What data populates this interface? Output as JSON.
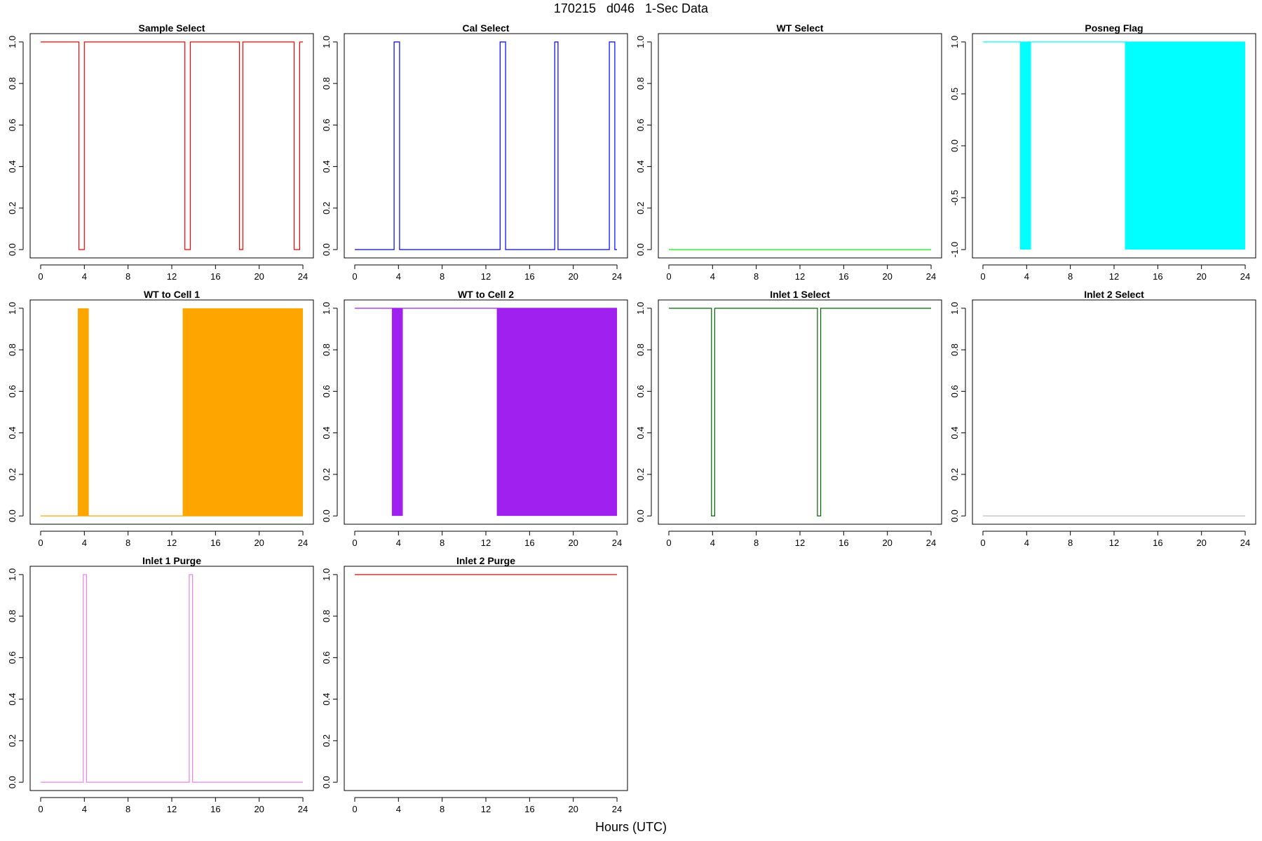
{
  "figure": {
    "title": "170215   d046   1-Sec Data",
    "xlabel": "Hours (UTC)"
  },
  "chart_data": [
    {
      "type": "line",
      "title": "Sample Select",
      "color": "#FF0000",
      "xlim": [
        0,
        24
      ],
      "ylim": [
        0,
        1
      ],
      "xticks": [
        "0",
        "4",
        "8",
        "12",
        "16",
        "20",
        "24"
      ],
      "yticks": [
        "0.0",
        "0.2",
        "0.4",
        "0.6",
        "0.8",
        "1.0"
      ],
      "x": [
        0,
        3.5,
        3.5,
        4.0,
        4.0,
        13.2,
        13.2,
        13.7,
        13.7,
        18.2,
        18.2,
        18.5,
        18.5,
        23.2,
        23.2,
        23.7,
        23.7,
        24
      ],
      "y": [
        1,
        1,
        0,
        0,
        1,
        1,
        0,
        0,
        1,
        1,
        0,
        0,
        1,
        1,
        0,
        0,
        1,
        1
      ]
    },
    {
      "type": "line",
      "title": "Cal Select",
      "color": "#0000FF",
      "xlim": [
        0,
        24
      ],
      "ylim": [
        0,
        1
      ],
      "xticks": [
        "0",
        "4",
        "8",
        "12",
        "16",
        "20",
        "24"
      ],
      "yticks": [
        "0.0",
        "0.2",
        "0.4",
        "0.6",
        "0.8",
        "1.0"
      ],
      "x": [
        0,
        3.6,
        3.6,
        4.1,
        4.1,
        13.3,
        13.3,
        13.8,
        13.8,
        18.3,
        18.3,
        18.6,
        18.6,
        23.3,
        23.3,
        23.8,
        23.8,
        24
      ],
      "y": [
        0,
        0,
        1,
        1,
        0,
        0,
        1,
        1,
        0,
        0,
        1,
        1,
        0,
        0,
        1,
        1,
        0,
        0
      ]
    },
    {
      "type": "line",
      "title": "WT Select",
      "color": "#00FF00",
      "xlim": [
        0,
        24
      ],
      "ylim": [
        0,
        1
      ],
      "xticks": [
        "0",
        "4",
        "8",
        "12",
        "16",
        "20",
        "24"
      ],
      "yticks": [
        "0.0",
        "0.2",
        "0.4",
        "0.6",
        "0.8",
        "1.0"
      ],
      "x": [
        0,
        24
      ],
      "y": [
        0,
        0
      ]
    },
    {
      "type": "area",
      "title": "Posneg Flag",
      "color": "#00FFFF",
      "xlim": [
        0,
        24
      ],
      "ylim": [
        -1,
        1
      ],
      "xticks": [
        "0",
        "4",
        "8",
        "12",
        "16",
        "20",
        "24"
      ],
      "yticks": [
        "-1.0",
        "-0.5",
        "0.0",
        "0.5",
        "1.0"
      ],
      "baseline": 1,
      "filled_intervals": [
        [
          3.4,
          4.4,
          -1
        ],
        [
          13.0,
          24.0,
          -1
        ]
      ]
    },
    {
      "type": "area",
      "title": "WT to Cell 1",
      "color": "#FFA500",
      "xlim": [
        0,
        24
      ],
      "ylim": [
        0,
        1
      ],
      "xticks": [
        "0",
        "4",
        "8",
        "12",
        "16",
        "20",
        "24"
      ],
      "yticks": [
        "0.0",
        "0.2",
        "0.4",
        "0.6",
        "0.8",
        "1.0"
      ],
      "baseline": 0,
      "filled_intervals": [
        [
          3.4,
          4.4,
          1
        ],
        [
          13.0,
          24.0,
          1
        ]
      ]
    },
    {
      "type": "area",
      "title": "WT to Cell 2",
      "color": "#A020F0",
      "xlim": [
        0,
        24
      ],
      "ylim": [
        0,
        1
      ],
      "xticks": [
        "0",
        "4",
        "8",
        "12",
        "16",
        "20",
        "24"
      ],
      "yticks": [
        "0.0",
        "0.2",
        "0.4",
        "0.6",
        "0.8",
        "1.0"
      ],
      "baseline": 1,
      "filled_intervals": [
        [
          3.4,
          4.4,
          0
        ],
        [
          13.0,
          24.0,
          0
        ]
      ]
    },
    {
      "type": "line",
      "title": "Inlet 1 Select",
      "color": "#006400",
      "xlim": [
        0,
        24
      ],
      "ylim": [
        0,
        1
      ],
      "xticks": [
        "0",
        "4",
        "8",
        "12",
        "16",
        "20",
        "24"
      ],
      "yticks": [
        "0.0",
        "0.2",
        "0.4",
        "0.6",
        "0.8",
        "1.0"
      ],
      "x": [
        0,
        3.9,
        3.9,
        4.2,
        4.2,
        13.6,
        13.6,
        13.9,
        13.9,
        24
      ],
      "y": [
        1,
        1,
        0,
        0,
        1,
        1,
        0,
        0,
        1,
        1
      ]
    },
    {
      "type": "line",
      "title": "Inlet 2 Select",
      "color": "#BEBEBE",
      "xlim": [
        0,
        24
      ],
      "ylim": [
        0,
        1
      ],
      "xticks": [
        "0",
        "4",
        "8",
        "12",
        "16",
        "20",
        "24"
      ],
      "yticks": [
        "0.0",
        "0.2",
        "0.4",
        "0.6",
        "0.8",
        "1.0"
      ],
      "x": [
        0,
        24
      ],
      "y": [
        0,
        0
      ]
    },
    {
      "type": "line",
      "title": "Inlet 1 Purge",
      "color": "#EE82EE",
      "xlim": [
        0,
        24
      ],
      "ylim": [
        0,
        1
      ],
      "xticks": [
        "0",
        "4",
        "8",
        "12",
        "16",
        "20",
        "24"
      ],
      "yticks": [
        "0.0",
        "0.2",
        "0.4",
        "0.6",
        "0.8",
        "1.0"
      ],
      "x": [
        0,
        3.9,
        3.9,
        4.2,
        4.2,
        13.6,
        13.6,
        13.9,
        13.9,
        24
      ],
      "y": [
        0,
        0,
        1,
        1,
        0,
        0,
        1,
        1,
        0,
        0
      ]
    },
    {
      "type": "line",
      "title": "Inlet 2 Purge",
      "color": "#FF0000",
      "xlim": [
        0,
        24
      ],
      "ylim": [
        0,
        1
      ],
      "xticks": [
        "0",
        "4",
        "8",
        "12",
        "16",
        "20",
        "24"
      ],
      "yticks": [
        "0.0",
        "0.2",
        "0.4",
        "0.6",
        "0.8",
        "1.0"
      ],
      "x": [
        0,
        24
      ],
      "y": [
        1,
        1
      ]
    }
  ]
}
